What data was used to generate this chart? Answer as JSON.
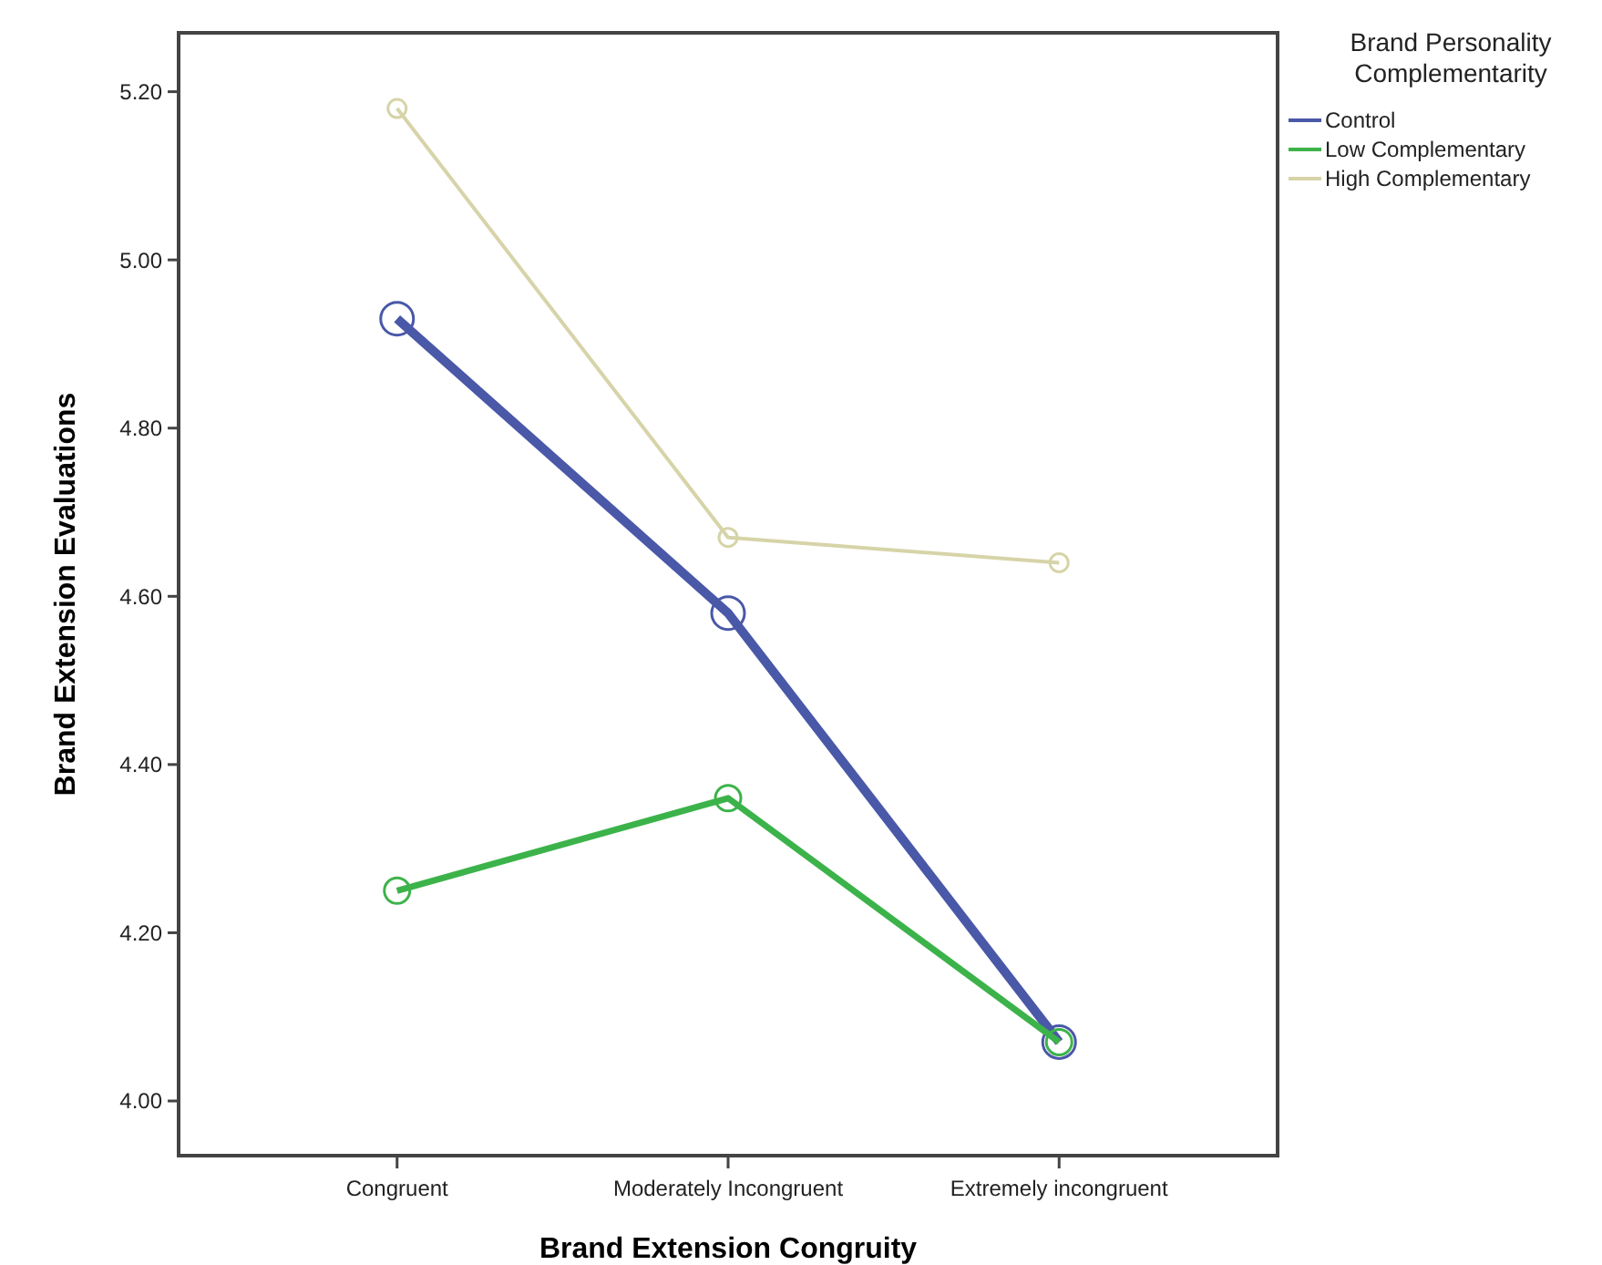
{
  "chart_data": {
    "type": "line",
    "xlabel": "Brand Extension Congruity",
    "ylabel": "Brand Extension Evaluations",
    "legend_title": "Brand Personality Complementarity",
    "legend": "top right",
    "marker": "circle",
    "grid": false,
    "categories": [
      "Congruent",
      "Moderately Incongruent",
      "Extremely incongruent"
    ],
    "ylim": [
      3.935,
      5.27
    ],
    "yticks": [
      {
        "value": 4,
        "label": "4.00"
      },
      {
        "value": 4.2,
        "label": "4.20"
      },
      {
        "value": 4.4,
        "label": "4.40"
      },
      {
        "value": 4.6,
        "label": "4.60"
      },
      {
        "value": 4.8,
        "label": "4.80"
      },
      {
        "value": 5,
        "label": "5.00"
      },
      {
        "value": 5.2,
        "label": "5.20"
      }
    ],
    "series": [
      {
        "name": "Control",
        "color": "#4a58a8",
        "values": [
          4.93,
          4.58,
          4.07
        ]
      },
      {
        "name": "Low Complementary",
        "color": "#3cb34a",
        "values": [
          4.25,
          4.36,
          4.07
        ]
      },
      {
        "name": "High Complementary",
        "color": "#d6d4a8",
        "values": [
          5.18,
          4.67,
          4.64
        ]
      }
    ]
  }
}
